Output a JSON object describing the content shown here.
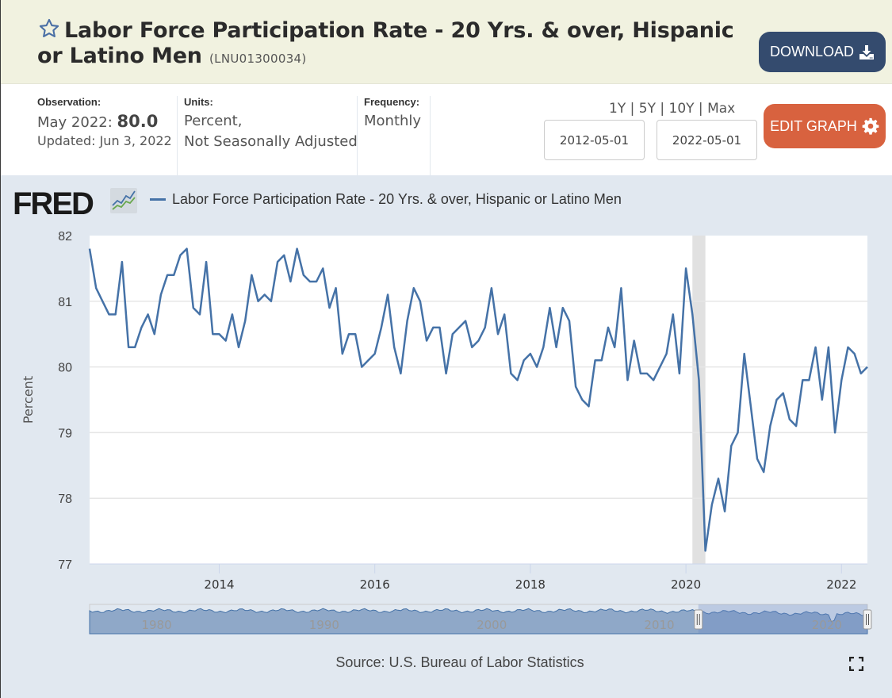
{
  "header": {
    "title": "Labor Force Participation Rate - 20 Yrs. & over, Hispanic or Latino Men",
    "series_id": "(LNU01300034)",
    "star_icon": "star-outline-icon",
    "download_label": "DOWNLOAD",
    "download_icon": "download-icon"
  },
  "meta": {
    "observation_label": "Observation:",
    "observation_period": "May 2022:",
    "observation_value": "80.0",
    "updated": "Updated: Jun 3, 2022",
    "units_label": "Units:",
    "units_line1": "Percent,",
    "units_line2": "Not Seasonally Adjusted",
    "frequency_label": "Frequency:",
    "frequency_value": "Monthly"
  },
  "controls": {
    "ranges": [
      "1Y",
      "5Y",
      "10Y",
      "Max"
    ],
    "separator": " | ",
    "start_date": "2012-05-01",
    "end_date": "2022-05-01",
    "edit_label": "EDIT GRAPH",
    "edit_icon": "gear-icon"
  },
  "graph": {
    "logo_text": "FRED",
    "legend_label": "Labor Force Participation Rate - 20 Yrs. & over, Hispanic or Latino Men",
    "source": "Source: U.S. Bureau of Labor Statistics",
    "fullscreen_icon": "fullscreen-icon"
  },
  "colors": {
    "series": "#4572a7",
    "recession": "#e1e1e1",
    "download_btn": "#344b6e",
    "edit_btn": "#d8623f",
    "header_bg": "#f1f2e0",
    "graph_bg": "#e1e8f0"
  },
  "chart_data": {
    "type": "line",
    "title": "Labor Force Participation Rate - 20 Yrs. & over, Hispanic or Latino Men",
    "xlabel": "",
    "ylabel": "Percent",
    "ylim": [
      77,
      82
    ],
    "yticks": [
      77,
      78,
      79,
      80,
      81,
      82
    ],
    "xticks": [
      "2014",
      "2016",
      "2018",
      "2020",
      "2022"
    ],
    "x_start": "2012-05",
    "x_end": "2022-05",
    "frequency": "monthly",
    "grid": true,
    "legend": "top-left",
    "recession_shading": [
      {
        "start": "2020-02",
        "end": "2020-04"
      }
    ],
    "series": [
      {
        "name": "Labor Force Participation Rate - 20 Yrs. & over, Hispanic or Latino Men",
        "values": [
          81.8,
          81.2,
          81.0,
          80.8,
          80.8,
          81.6,
          80.3,
          80.3,
          80.6,
          80.8,
          80.5,
          81.1,
          81.4,
          81.4,
          81.7,
          81.8,
          80.9,
          80.8,
          81.6,
          80.5,
          80.5,
          80.4,
          80.8,
          80.3,
          80.7,
          81.4,
          81.0,
          81.1,
          81.0,
          81.6,
          81.7,
          81.3,
          81.8,
          81.4,
          81.3,
          81.3,
          81.5,
          80.9,
          81.2,
          80.2,
          80.5,
          80.5,
          80.0,
          80.1,
          80.2,
          80.6,
          81.1,
          80.3,
          79.9,
          80.7,
          81.2,
          81.0,
          80.4,
          80.6,
          80.6,
          79.9,
          80.5,
          80.6,
          80.7,
          80.3,
          80.4,
          80.6,
          81.2,
          80.5,
          80.8,
          79.9,
          79.8,
          80.1,
          80.2,
          80.0,
          80.3,
          80.9,
          80.3,
          80.9,
          80.7,
          79.7,
          79.5,
          79.4,
          80.1,
          80.1,
          80.6,
          80.3,
          81.2,
          79.8,
          80.4,
          79.9,
          79.9,
          79.8,
          80.0,
          80.2,
          80.8,
          79.9,
          81.5,
          80.8,
          79.8,
          77.2,
          77.9,
          78.3,
          77.8,
          78.8,
          79.0,
          80.2,
          79.4,
          78.6,
          78.4,
          79.1,
          79.5,
          79.6,
          79.2,
          79.1,
          79.8,
          79.8,
          80.3,
          79.5,
          80.3,
          79.0,
          79.8,
          80.3,
          80.2,
          79.9,
          80.0
        ]
      }
    ],
    "navigator": {
      "labels": [
        "1980",
        "1990",
        "2000",
        "2010",
        "2020"
      ],
      "selected_range": [
        "2012-05",
        "2022-05"
      ]
    }
  }
}
